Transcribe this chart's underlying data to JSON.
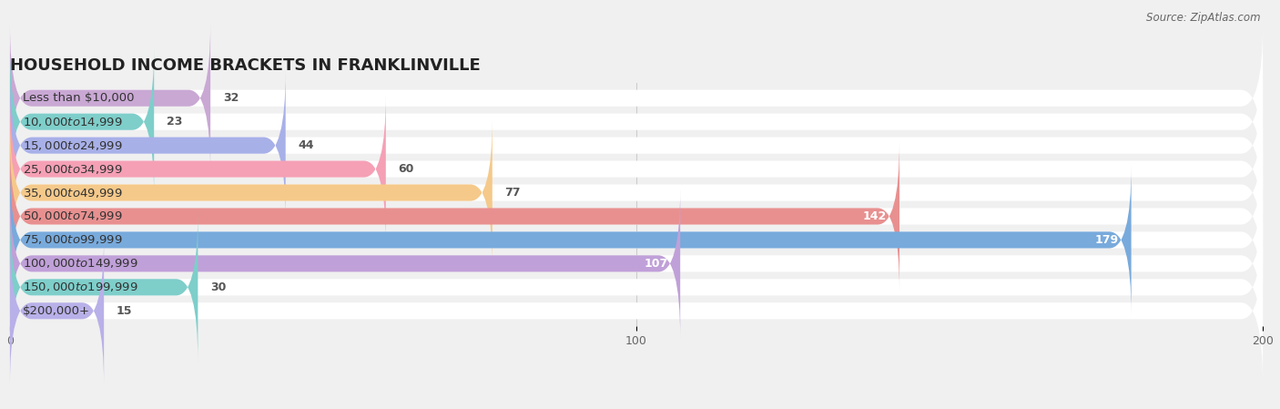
{
  "title": "HOUSEHOLD INCOME BRACKETS IN FRANKLINVILLE",
  "source": "Source: ZipAtlas.com",
  "categories": [
    "Less than $10,000",
    "$10,000 to $14,999",
    "$15,000 to $24,999",
    "$25,000 to $34,999",
    "$35,000 to $49,999",
    "$50,000 to $74,999",
    "$75,000 to $99,999",
    "$100,000 to $149,999",
    "$150,000 to $199,999",
    "$200,000+"
  ],
  "values": [
    32,
    23,
    44,
    60,
    77,
    142,
    179,
    107,
    30,
    15
  ],
  "bar_colors": [
    "#c9a8d4",
    "#7ececa",
    "#a8b0e8",
    "#f5a0b5",
    "#f5c98a",
    "#e89090",
    "#78aadc",
    "#c0a0d8",
    "#7ececa",
    "#b8b0e8"
  ],
  "background_color": "#f0f0f0",
  "bar_bg_color": "#ffffff",
  "xlim": [
    0,
    200
  ],
  "xticks": [
    0,
    100,
    200
  ],
  "title_fontsize": 13,
  "label_fontsize": 9.5,
  "value_fontsize": 9,
  "bar_height": 0.7,
  "bar_spacing": 1.0
}
